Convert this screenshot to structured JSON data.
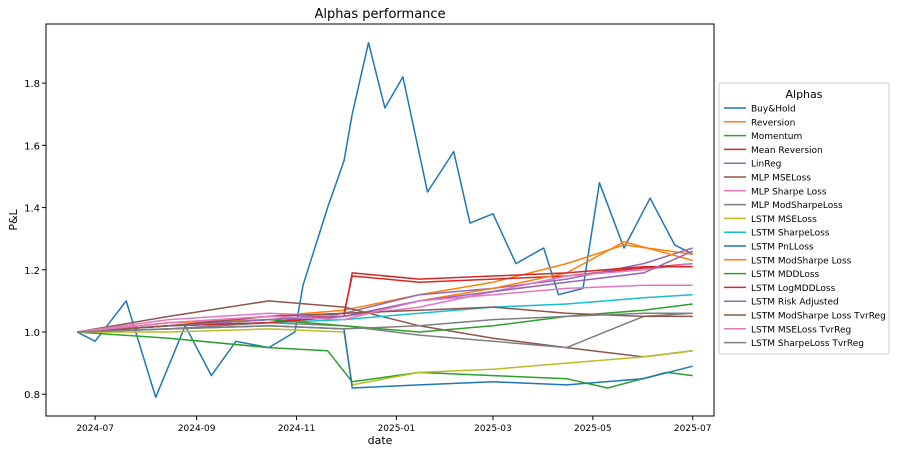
{
  "chart_data": {
    "type": "line",
    "title": "Alphas performance",
    "xlabel": "date",
    "ylabel": "P&L",
    "x_range": [
      "2024-06-01",
      "2025-07-14"
    ],
    "ylim": [
      0.73,
      1.99
    ],
    "x_ticks": [
      {
        "date": "2024-07-01",
        "label": "2024-07"
      },
      {
        "date": "2024-09-01",
        "label": "2024-09"
      },
      {
        "date": "2024-11-01",
        "label": "2024-11"
      },
      {
        "date": "2025-01-01",
        "label": "2025-01"
      },
      {
        "date": "2025-03-01",
        "label": "2025-03"
      },
      {
        "date": "2025-05-01",
        "label": "2025-05"
      },
      {
        "date": "2025-07-01",
        "label": "2025-07"
      }
    ],
    "y_ticks": [
      {
        "value": 0.8,
        "label": "0.8"
      },
      {
        "value": 1.0,
        "label": "1.0"
      },
      {
        "value": 1.2,
        "label": "1.2"
      },
      {
        "value": 1.4,
        "label": "1.4"
      },
      {
        "value": 1.6,
        "label": "1.6"
      },
      {
        "value": 1.8,
        "label": "1.8"
      }
    ],
    "grid": false,
    "legend": {
      "title": "Alphas",
      "position": "outside right"
    },
    "series": [
      {
        "name": "Buy&Hold",
        "color": "#1f77b4",
        "points": [
          [
            "2024-06-20",
            1.0
          ],
          [
            "2024-07-01",
            0.97
          ],
          [
            "2024-07-20",
            1.1
          ],
          [
            "2024-08-07",
            0.79
          ],
          [
            "2024-08-25",
            1.02
          ],
          [
            "2024-09-10",
            0.86
          ],
          [
            "2024-09-25",
            0.97
          ],
          [
            "2024-10-15",
            0.95
          ],
          [
            "2024-10-31",
            1.0
          ],
          [
            "2024-11-05",
            1.15
          ],
          [
            "2024-11-20",
            1.4
          ],
          [
            "2024-11-30",
            1.55
          ],
          [
            "2024-12-05",
            1.7
          ],
          [
            "2024-12-15",
            1.93
          ],
          [
            "2024-12-25",
            1.72
          ],
          [
            "2025-01-05",
            1.82
          ],
          [
            "2025-01-20",
            1.45
          ],
          [
            "2025-02-05",
            1.58
          ],
          [
            "2025-02-15",
            1.35
          ],
          [
            "2025-03-01",
            1.38
          ],
          [
            "2025-03-15",
            1.22
          ],
          [
            "2025-04-01",
            1.27
          ],
          [
            "2025-04-10",
            1.12
          ],
          [
            "2025-04-25",
            1.14
          ],
          [
            "2025-05-05",
            1.48
          ],
          [
            "2025-05-20",
            1.27
          ],
          [
            "2025-06-05",
            1.43
          ],
          [
            "2025-06-20",
            1.28
          ],
          [
            "2025-07-01",
            1.25
          ]
        ]
      },
      {
        "name": "Reversion",
        "color": "#ff7f0e",
        "points": [
          [
            "2024-06-20",
            1.0
          ],
          [
            "2024-08-15",
            1.03
          ],
          [
            "2024-10-15",
            1.05
          ],
          [
            "2024-11-30",
            1.07
          ],
          [
            "2025-01-15",
            1.12
          ],
          [
            "2025-03-01",
            1.16
          ],
          [
            "2025-04-15",
            1.22
          ],
          [
            "2025-05-20",
            1.28
          ],
          [
            "2025-07-01",
            1.25
          ]
        ]
      },
      {
        "name": "Momentum",
        "color": "#2ca02c",
        "points": [
          [
            "2024-06-20",
            1.0
          ],
          [
            "2024-08-15",
            0.98
          ],
          [
            "2024-10-15",
            0.95
          ],
          [
            "2024-11-20",
            0.94
          ],
          [
            "2024-12-05",
            0.84
          ],
          [
            "2025-01-15",
            0.87
          ],
          [
            "2025-03-01",
            0.86
          ],
          [
            "2025-04-15",
            0.85
          ],
          [
            "2025-05-10",
            0.82
          ],
          [
            "2025-06-15",
            0.87
          ],
          [
            "2025-07-01",
            0.86
          ]
        ]
      },
      {
        "name": "Mean Reversion",
        "color": "#d62728",
        "points": [
          [
            "2024-06-20",
            1.0
          ],
          [
            "2024-08-15",
            1.02
          ],
          [
            "2024-10-15",
            1.03
          ],
          [
            "2024-11-30",
            1.06
          ],
          [
            "2024-12-05",
            1.18
          ],
          [
            "2025-01-15",
            1.16
          ],
          [
            "2025-03-01",
            1.17
          ],
          [
            "2025-04-15",
            1.18
          ],
          [
            "2025-05-20",
            1.2
          ],
          [
            "2025-07-01",
            1.22
          ]
        ]
      },
      {
        "name": "LinReg",
        "color": "#9467bd",
        "points": [
          [
            "2024-06-20",
            1.0
          ],
          [
            "2024-08-15",
            1.02
          ],
          [
            "2024-10-15",
            1.04
          ],
          [
            "2024-11-30",
            1.06
          ],
          [
            "2025-01-15",
            1.12
          ],
          [
            "2025-03-01",
            1.14
          ],
          [
            "2025-04-15",
            1.17
          ],
          [
            "2025-06-01",
            1.22
          ],
          [
            "2025-07-01",
            1.27
          ]
        ]
      },
      {
        "name": "MLP MSELoss",
        "color": "#8c564b",
        "points": [
          [
            "2024-06-20",
            1.0
          ],
          [
            "2024-08-15",
            1.05
          ],
          [
            "2024-10-15",
            1.1
          ],
          [
            "2024-11-30",
            1.08
          ],
          [
            "2025-01-15",
            1.02
          ],
          [
            "2025-03-01",
            0.98
          ],
          [
            "2025-04-15",
            0.95
          ],
          [
            "2025-06-01",
            0.92
          ],
          [
            "2025-07-01",
            0.94
          ]
        ]
      },
      {
        "name": "MLP Sharpe Loss",
        "color": "#e377c2",
        "points": [
          [
            "2024-06-20",
            1.0
          ],
          [
            "2024-08-15",
            1.04
          ],
          [
            "2024-10-15",
            1.06
          ],
          [
            "2024-11-30",
            1.05
          ],
          [
            "2025-01-15",
            1.08
          ],
          [
            "2025-03-01",
            1.13
          ],
          [
            "2025-04-15",
            1.18
          ],
          [
            "2025-06-01",
            1.2
          ],
          [
            "2025-07-01",
            1.22
          ]
        ]
      },
      {
        "name": "MLP ModSharpeLoss",
        "color": "#7f7f7f",
        "points": [
          [
            "2024-06-20",
            1.0
          ],
          [
            "2024-08-15",
            1.01
          ],
          [
            "2024-10-15",
            1.03
          ],
          [
            "2024-11-30",
            1.02
          ],
          [
            "2025-01-15",
            0.99
          ],
          [
            "2025-03-01",
            0.97
          ],
          [
            "2025-04-15",
            0.95
          ],
          [
            "2025-06-01",
            1.05
          ],
          [
            "2025-07-01",
            1.06
          ]
        ]
      },
      {
        "name": "LSTM MSELoss",
        "color": "#bcbd22",
        "points": [
          [
            "2024-06-20",
            1.0
          ],
          [
            "2024-08-15",
            1.0
          ],
          [
            "2024-10-15",
            1.01
          ],
          [
            "2024-11-30",
            1.0
          ],
          [
            "2024-12-05",
            0.83
          ],
          [
            "2025-01-15",
            0.87
          ],
          [
            "2025-03-01",
            0.88
          ],
          [
            "2025-04-15",
            0.9
          ],
          [
            "2025-06-01",
            0.92
          ],
          [
            "2025-07-01",
            0.94
          ]
        ]
      },
      {
        "name": "LSTM SharpeLoss",
        "color": "#17becf",
        "points": [
          [
            "2024-06-20",
            1.0
          ],
          [
            "2024-08-15",
            1.02
          ],
          [
            "2024-10-15",
            1.03
          ],
          [
            "2024-11-30",
            1.04
          ],
          [
            "2025-01-15",
            1.06
          ],
          [
            "2025-03-01",
            1.08
          ],
          [
            "2025-04-15",
            1.09
          ],
          [
            "2025-06-01",
            1.11
          ],
          [
            "2025-07-01",
            1.12
          ]
        ]
      },
      {
        "name": "LSTM PnLLoss",
        "color": "#1f77b4",
        "points": [
          [
            "2024-06-20",
            1.0
          ],
          [
            "2024-08-15",
            1.01
          ],
          [
            "2024-10-15",
            1.02
          ],
          [
            "2024-11-30",
            1.01
          ],
          [
            "2024-12-05",
            0.82
          ],
          [
            "2025-01-15",
            0.83
          ],
          [
            "2025-03-01",
            0.84
          ],
          [
            "2025-04-15",
            0.83
          ],
          [
            "2025-06-01",
            0.85
          ],
          [
            "2025-07-01",
            0.89
          ]
        ]
      },
      {
        "name": "LSTM ModSharpe Loss",
        "color": "#ff7f0e",
        "points": [
          [
            "2024-06-20",
            1.0
          ],
          [
            "2024-08-15",
            1.03
          ],
          [
            "2024-10-15",
            1.04
          ],
          [
            "2024-11-30",
            1.05
          ],
          [
            "2025-01-15",
            1.1
          ],
          [
            "2025-03-01",
            1.14
          ],
          [
            "2025-04-15",
            1.19
          ],
          [
            "2025-05-20",
            1.29
          ],
          [
            "2025-07-01",
            1.23
          ]
        ]
      },
      {
        "name": "LSTM MDDLoss",
        "color": "#2ca02c",
        "points": [
          [
            "2024-06-20",
            1.0
          ],
          [
            "2024-08-15",
            1.02
          ],
          [
            "2024-10-15",
            1.04
          ],
          [
            "2024-11-30",
            1.02
          ],
          [
            "2025-01-15",
            1.0
          ],
          [
            "2025-03-01",
            1.02
          ],
          [
            "2025-04-15",
            1.05
          ],
          [
            "2025-06-01",
            1.07
          ],
          [
            "2025-07-01",
            1.09
          ]
        ]
      },
      {
        "name": "LSTM LogMDDLoss",
        "color": "#d62728",
        "points": [
          [
            "2024-06-20",
            1.0
          ],
          [
            "2024-08-15",
            1.02
          ],
          [
            "2024-10-15",
            1.03
          ],
          [
            "2024-11-30",
            1.05
          ],
          [
            "2024-12-05",
            1.19
          ],
          [
            "2025-01-15",
            1.17
          ],
          [
            "2025-03-01",
            1.18
          ],
          [
            "2025-04-15",
            1.19
          ],
          [
            "2025-06-01",
            1.21
          ],
          [
            "2025-07-01",
            1.21
          ]
        ]
      },
      {
        "name": "LSTM Risk Adjusted",
        "color": "#9467bd",
        "points": [
          [
            "2024-06-20",
            1.0
          ],
          [
            "2024-08-15",
            1.02
          ],
          [
            "2024-10-15",
            1.04
          ],
          [
            "2024-11-30",
            1.05
          ],
          [
            "2025-01-15",
            1.1
          ],
          [
            "2025-03-01",
            1.13
          ],
          [
            "2025-04-15",
            1.16
          ],
          [
            "2025-06-01",
            1.19
          ],
          [
            "2025-07-01",
            1.26
          ]
        ]
      },
      {
        "name": "LSTM ModSharpe Loss TvrReg",
        "color": "#8c564b",
        "points": [
          [
            "2024-06-20",
            1.0
          ],
          [
            "2024-08-15",
            1.02
          ],
          [
            "2024-10-15",
            1.05
          ],
          [
            "2024-11-30",
            1.06
          ],
          [
            "2025-01-15",
            1.07
          ],
          [
            "2025-03-01",
            1.08
          ],
          [
            "2025-04-15",
            1.06
          ],
          [
            "2025-06-01",
            1.05
          ],
          [
            "2025-07-01",
            1.05
          ]
        ]
      },
      {
        "name": "LSTM MSELoss TvrReg",
        "color": "#e377c2",
        "points": [
          [
            "2024-06-20",
            1.0
          ],
          [
            "2024-08-15",
            1.03
          ],
          [
            "2024-10-15",
            1.05
          ],
          [
            "2024-11-30",
            1.04
          ],
          [
            "2025-01-15",
            1.1
          ],
          [
            "2025-03-01",
            1.12
          ],
          [
            "2025-04-15",
            1.14
          ],
          [
            "2025-06-01",
            1.15
          ],
          [
            "2025-07-01",
            1.15
          ]
        ]
      },
      {
        "name": "LSTM SharpeLoss TvrReg",
        "color": "#7f7f7f",
        "points": [
          [
            "2024-06-20",
            1.0
          ],
          [
            "2024-08-15",
            1.01
          ],
          [
            "2024-10-15",
            1.02
          ],
          [
            "2024-11-30",
            1.01
          ],
          [
            "2025-01-15",
            1.02
          ],
          [
            "2025-03-01",
            1.04
          ],
          [
            "2025-04-15",
            1.05
          ],
          [
            "2025-06-01",
            1.06
          ],
          [
            "2025-07-01",
            1.06
          ]
        ]
      }
    ]
  }
}
